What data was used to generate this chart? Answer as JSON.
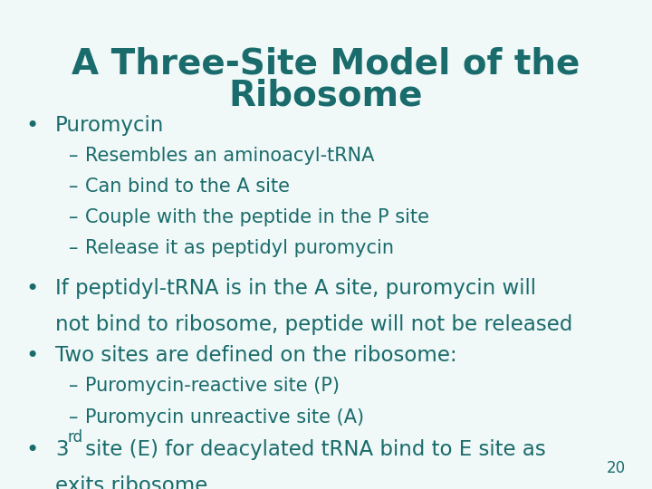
{
  "title_line1": "A Three-Site Model of the",
  "title_line2": "Ribosome",
  "title_color": "#1a6b6b",
  "title_fontsize": 28,
  "background_color": "#f0f8f8",
  "text_color": "#1a6b6b",
  "bullet_fontsize": 16.5,
  "sub_bullet_fontsize": 15,
  "page_number": "20",
  "page_number_fontsize": 12
}
